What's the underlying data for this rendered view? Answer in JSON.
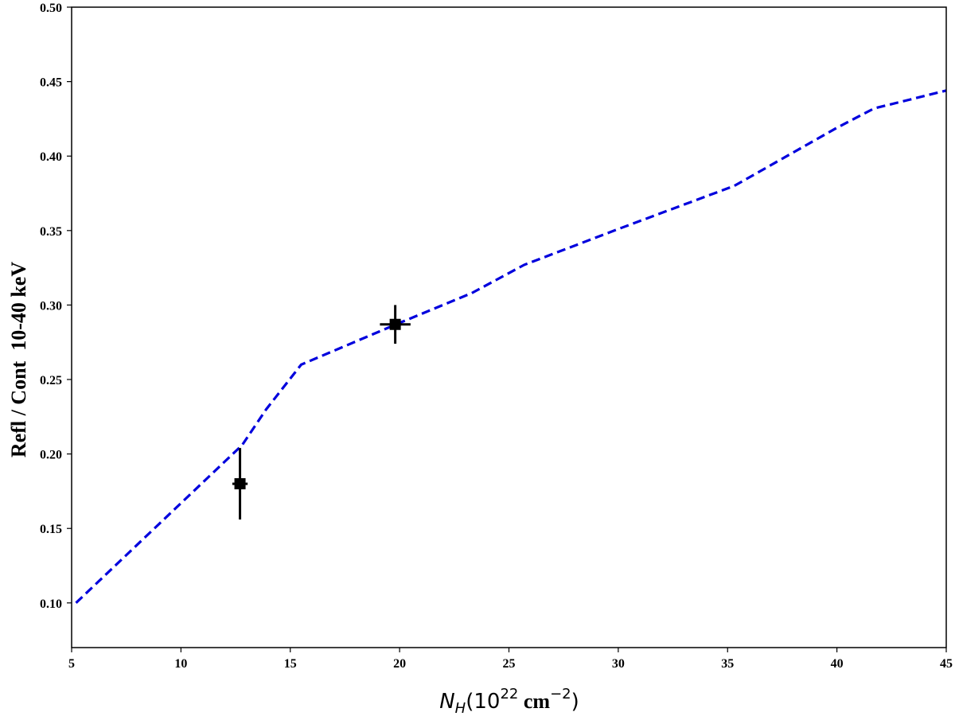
{
  "chart_data": {
    "type": "line",
    "xlabel": {
      "symbol": "N",
      "subscript": "H",
      "prefix": "(10",
      "exponent": "22",
      "unit": " cm",
      "unit_exponent": "−2",
      "suffix": ")"
    },
    "ylabel": "Refl / Cont  10-40 keV",
    "xlim": [
      5,
      45
    ],
    "ylim": [
      0.07,
      0.5
    ],
    "xticks": [
      5,
      10,
      15,
      20,
      25,
      30,
      35,
      40,
      45
    ],
    "yticks": [
      0.1,
      0.15,
      0.2,
      0.25,
      0.3,
      0.35,
      0.4,
      0.45,
      0.5
    ],
    "xtick_labels": [
      "5",
      "10",
      "15",
      "20",
      "25",
      "30",
      "35",
      "40",
      "45"
    ],
    "ytick_labels": [
      "0.10",
      "0.15",
      "0.20",
      "0.25",
      "0.30",
      "0.35",
      "0.40",
      "0.45",
      "0.50"
    ],
    "grid": false,
    "series": [
      {
        "style": "dashed-line",
        "color": "#0000dd",
        "x": [
          5.2,
          12.8,
          13.9,
          15.5,
          20.0,
          23.3,
          25.7,
          30.0,
          35.3,
          40.0,
          41.7,
          45.0
        ],
        "y": [
          0.1,
          0.206,
          0.23,
          0.26,
          0.288,
          0.308,
          0.327,
          0.351,
          0.38,
          0.419,
          0.432,
          0.444
        ]
      },
      {
        "style": "points-with-errorbars",
        "color": "#000000",
        "points": [
          {
            "x": 12.7,
            "y": 0.18,
            "xerr": 0.35,
            "yerr_low": 0.024,
            "yerr_high": 0.024
          },
          {
            "x": 19.8,
            "y": 0.287,
            "xerr": 0.7,
            "yerr_low": 0.013,
            "yerr_high": 0.013
          }
        ]
      }
    ]
  }
}
